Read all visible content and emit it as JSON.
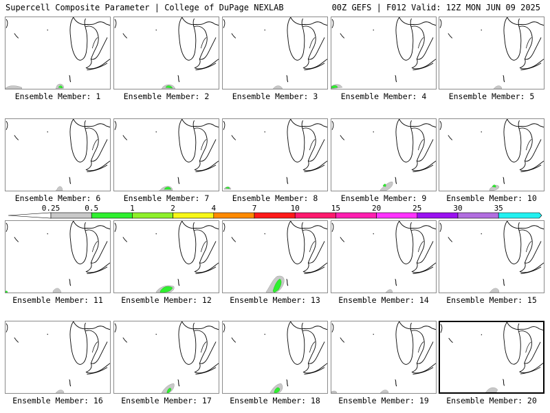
{
  "header": {
    "left": "Supercell Composite Parameter | College of DuPage NEXLAB",
    "right": "00Z GEFS | F012 Valid: 12Z MON JUN 09 2025"
  },
  "colorbar": {
    "labels": [
      "0.25",
      "0.5",
      "1",
      "2",
      "4",
      "7",
      "10",
      "15",
      "20",
      "25",
      "30",
      "35"
    ],
    "colors": [
      "#c8c8c8",
      "#2ff02f",
      "#8ef02a",
      "#f7f718",
      "#ff8a00",
      "#ff1a1a",
      "#ff1a6e",
      "#ff1fb0",
      "#ff33ff",
      "#9b12f0",
      "#b26ee0",
      "#22f0f0"
    ]
  },
  "members": [
    {
      "label": "Ensemble Member: 1"
    },
    {
      "label": "Ensemble Member: 2"
    },
    {
      "label": "Ensemble Member: 3"
    },
    {
      "label": "Ensemble Member: 4"
    },
    {
      "label": "Ensemble Member: 5"
    },
    {
      "label": "Ensemble Member: 6"
    },
    {
      "label": "Ensemble Member: 7"
    },
    {
      "label": "Ensemble Member: 8"
    },
    {
      "label": "Ensemble Member: 9"
    },
    {
      "label": "Ensemble Member: 10"
    },
    {
      "label": "Ensemble Member: 11"
    },
    {
      "label": "Ensemble Member: 12"
    },
    {
      "label": "Ensemble Member: 13"
    },
    {
      "label": "Ensemble Member: 14"
    },
    {
      "label": "Ensemble Member: 15"
    },
    {
      "label": "Ensemble Member: 16"
    },
    {
      "label": "Ensemble Member: 17"
    },
    {
      "label": "Ensemble Member: 18"
    },
    {
      "label": "Ensemble Member: 19"
    },
    {
      "label": "Ensemble Member: 20"
    }
  ],
  "selected_member_index": 19
}
